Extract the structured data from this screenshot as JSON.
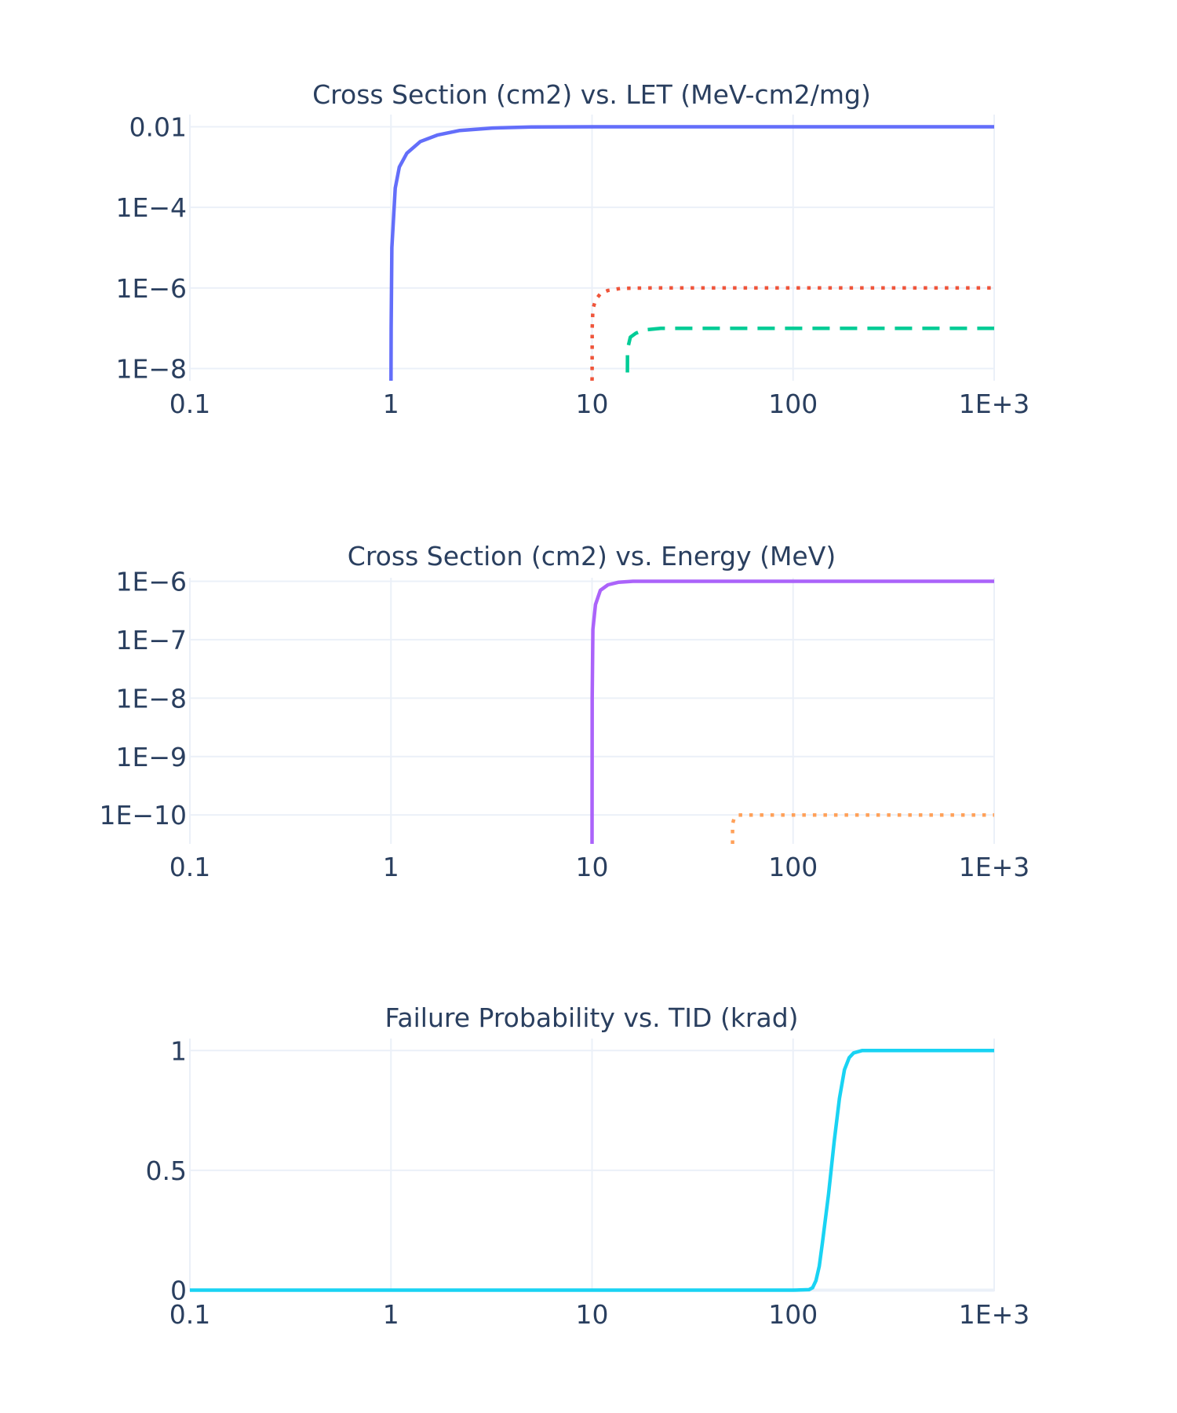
{
  "chart_data": [
    {
      "type": "line",
      "title": "Cross Section (cm2) vs. LET (MeV-cm2/mg)",
      "xlabel": "",
      "ylabel": "",
      "x_scale": "log",
      "y_scale": "log",
      "xlim": [
        0.1,
        1000
      ],
      "ylim": [
        5e-09,
        0.02
      ],
      "grid": true,
      "x_ticks": [
        0.1,
        1,
        10,
        100,
        1000
      ],
      "x_tick_labels": [
        "0.1",
        "1",
        "10",
        "100",
        "1E+3"
      ],
      "y_ticks": [
        1e-08,
        1e-06,
        0.0001,
        0.01
      ],
      "y_tick_labels": [
        "1E−8",
        "1E−6",
        "1E−4",
        "0.01"
      ],
      "series": [
        {
          "color": "#636efa",
          "dash": "solid",
          "x": [
            1.0,
            1.002,
            1.01,
            1.05,
            1.1,
            1.2,
            1.4,
            1.7,
            2.2,
            3.2,
            5,
            10,
            100,
            1000
          ],
          "y": [
            5e-09,
            1e-07,
            1e-05,
            0.0003,
            0.001,
            0.0022,
            0.0043,
            0.0062,
            0.0081,
            0.0093,
            0.0099,
            0.01,
            0.01,
            0.01
          ]
        },
        {
          "color": "#ef553b",
          "dash": "dot",
          "x": [
            10.0,
            10.005,
            10.02,
            10.1,
            10.4,
            11,
            12,
            14,
            20,
            100,
            1000
          ],
          "y": [
            5e-09,
            6e-09,
            1e-07,
            3e-07,
            5e-07,
            7.2e-07,
            8.7e-07,
            9.8e-07,
            1e-06,
            1e-06,
            1e-06
          ]
        },
        {
          "color": "#00cc96",
          "dash": "dash",
          "x": [
            15.0,
            15.01,
            15.5,
            16.5,
            18,
            22,
            100,
            1000
          ],
          "y": [
            8e-09,
            3e-08,
            6e-08,
            7.5e-08,
            9e-08,
            1e-07,
            1e-07,
            1e-07
          ]
        }
      ]
    },
    {
      "type": "line",
      "title": "Cross Section (cm2) vs. Energy (MeV)",
      "xlabel": "",
      "ylabel": "",
      "x_scale": "log",
      "y_scale": "log",
      "xlim": [
        0.1,
        1000
      ],
      "ylim": [
        3.2e-11,
        1.15e-06
      ],
      "grid": true,
      "x_ticks": [
        0.1,
        1,
        10,
        100,
        1000
      ],
      "x_tick_labels": [
        "0.1",
        "1",
        "10",
        "100",
        "1E+3"
      ],
      "y_ticks": [
        1e-10,
        1e-09,
        1e-08,
        1e-07,
        1e-06
      ],
      "y_tick_labels": [
        "1E−10",
        "1E−9",
        "1E−8",
        "1E−7",
        "1E−6"
      ],
      "series": [
        {
          "color": "#ab63fa",
          "dash": "solid",
          "x": [
            10.0,
            10.02,
            10.1,
            10.4,
            11,
            12,
            13.5,
            16,
            25,
            100,
            1000
          ],
          "y": [
            3.2e-11,
            1e-08,
            1.5e-07,
            4e-07,
            7e-07,
            8.7e-07,
            9.6e-07,
            1e-06,
            1e-06,
            1e-06,
            1e-06
          ]
        },
        {
          "color": "#ffa15a",
          "dash": "dot",
          "x": [
            50.0,
            50.01,
            51,
            53,
            60,
            100,
            1000
          ],
          "y": [
            3.2e-11,
            7e-11,
            9e-11,
            1e-10,
            1e-10,
            1e-10,
            1e-10
          ]
        }
      ]
    },
    {
      "type": "line",
      "title": "Failure Probability vs. TID (krad)",
      "xlabel": "",
      "ylabel": "",
      "x_scale": "log",
      "y_scale": "linear",
      "xlim": [
        0.1,
        1000
      ],
      "ylim": [
        -0.005,
        1.05
      ],
      "grid": true,
      "x_ticks": [
        0.1,
        1,
        10,
        100,
        1000
      ],
      "x_tick_labels": [
        "0.1",
        "1",
        "10",
        "100",
        "1E+3"
      ],
      "y_ticks": [
        0,
        0.5,
        1
      ],
      "y_tick_labels": [
        "0",
        "0.5",
        "1"
      ],
      "series": [
        {
          "color": "#19d3f3",
          "dash": "solid",
          "x": [
            0.1,
            1,
            10,
            100,
            120,
            125,
            130,
            135,
            140,
            150,
            160,
            170,
            180,
            190,
            200,
            220,
            300,
            1000
          ],
          "y": [
            0.0,
            0.0,
            0.0,
            0.0,
            0.002,
            0.01,
            0.04,
            0.1,
            0.2,
            0.4,
            0.62,
            0.8,
            0.92,
            0.97,
            0.99,
            1.0,
            1.0,
            1.0
          ]
        }
      ]
    }
  ]
}
